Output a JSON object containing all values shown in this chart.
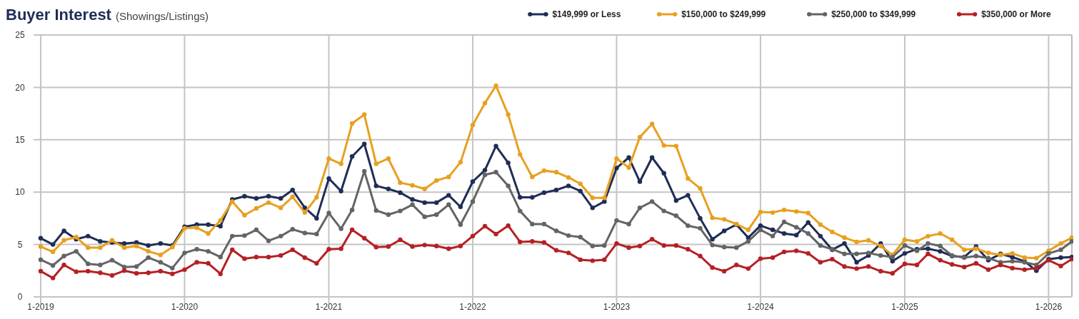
{
  "chart_data": {
    "type": "line",
    "title": "Buyer Interest",
    "subtitle": "(Showings/Listings)",
    "x": [
      "2019-01",
      "2019-02",
      "2019-03",
      "2019-04",
      "2019-05",
      "2019-06",
      "2019-07",
      "2019-08",
      "2019-09",
      "2019-10",
      "2019-11",
      "2019-12",
      "2020-01",
      "2020-02",
      "2020-03",
      "2020-04",
      "2020-05",
      "2020-06",
      "2020-07",
      "2020-08",
      "2020-09",
      "2020-10",
      "2020-11",
      "2020-12",
      "2021-01",
      "2021-02",
      "2021-03",
      "2021-04",
      "2021-05",
      "2021-06",
      "2021-07",
      "2021-08",
      "2021-09",
      "2021-10",
      "2021-11",
      "2021-12",
      "2022-01",
      "2022-02",
      "2022-03",
      "2022-04",
      "2022-05",
      "2022-06",
      "2022-07",
      "2022-08",
      "2022-09",
      "2022-10",
      "2022-11",
      "2022-12",
      "2023-01",
      "2023-02",
      "2023-03",
      "2023-04",
      "2023-05",
      "2023-06",
      "2023-07",
      "2023-08",
      "2023-09",
      "2023-10",
      "2023-11",
      "2023-12",
      "2024-01",
      "2024-02",
      "2024-03",
      "2024-04",
      "2024-05",
      "2024-06",
      "2024-07",
      "2024-08",
      "2024-09",
      "2024-10",
      "2024-11",
      "2024-12",
      "2025-01",
      "2025-02",
      "2025-03",
      "2025-04",
      "2025-05",
      "2025-06",
      "2025-07",
      "2025-08",
      "2025-09",
      "2025-10",
      "2025-11",
      "2025-12",
      "2026-01",
      "2026-02",
      "2026-03"
    ],
    "series": [
      {
        "name": "$149,999 or Less",
        "color": "#1f2d56",
        "values": [
          5.6,
          5.0,
          6.3,
          5.5,
          5.8,
          5.3,
          5.2,
          5.1,
          5.2,
          4.9,
          5.1,
          4.9,
          6.7,
          6.9,
          6.9,
          6.75,
          9.3,
          9.6,
          9.4,
          9.6,
          9.4,
          10.2,
          8.5,
          7.5,
          11.3,
          10.1,
          13.4,
          14.6,
          10.6,
          10.3,
          9.95,
          9.3,
          9.0,
          9.0,
          9.7,
          8.6,
          11.0,
          12.1,
          14.4,
          12.8,
          9.5,
          9.5,
          9.95,
          10.2,
          10.6,
          10.1,
          8.5,
          9.1,
          12.3,
          13.3,
          11.0,
          13.3,
          11.8,
          9.2,
          9.7,
          7.5,
          5.5,
          6.3,
          6.9,
          5.65,
          6.8,
          6.4,
          6.05,
          5.9,
          7.1,
          5.8,
          4.5,
          5.1,
          3.3,
          3.95,
          5.1,
          3.4,
          4.15,
          4.55,
          4.6,
          4.35,
          3.9,
          3.8,
          4.8,
          3.5,
          4.1,
          3.8,
          3.4,
          2.5,
          3.6,
          3.75,
          3.8
        ]
      },
      {
        "name": "$150,000 to $249,999",
        "color": "#e8a020",
        "values": [
          4.8,
          4.3,
          5.4,
          5.7,
          4.7,
          4.7,
          5.4,
          4.7,
          4.85,
          4.35,
          4.0,
          4.75,
          6.55,
          6.6,
          6.05,
          7.3,
          9.1,
          7.8,
          8.45,
          9.0,
          8.5,
          9.55,
          8.05,
          9.5,
          13.2,
          12.7,
          16.55,
          17.4,
          12.7,
          13.2,
          10.9,
          10.65,
          10.3,
          11.1,
          11.45,
          12.85,
          16.4,
          18.5,
          20.15,
          17.4,
          13.6,
          11.45,
          12.05,
          11.9,
          11.4,
          10.8,
          9.45,
          9.45,
          13.2,
          12.35,
          15.25,
          16.5,
          14.45,
          14.4,
          11.3,
          10.35,
          7.55,
          7.4,
          6.95,
          6.4,
          8.1,
          8.05,
          8.3,
          8.15,
          8.0,
          6.9,
          6.2,
          5.65,
          5.25,
          5.4,
          4.85,
          4.0,
          5.45,
          5.3,
          5.8,
          6.05,
          5.45,
          4.5,
          4.6,
          4.2,
          4.0,
          4.15,
          3.75,
          3.7,
          4.4,
          5.1,
          5.65
        ]
      },
      {
        "name": "$250,000 to $349,999",
        "color": "#636466",
        "values": [
          3.55,
          3.0,
          3.9,
          4.35,
          3.15,
          3.05,
          3.5,
          2.85,
          2.9,
          3.75,
          3.3,
          2.75,
          4.2,
          4.55,
          4.35,
          3.8,
          5.8,
          5.85,
          6.4,
          5.35,
          5.8,
          6.45,
          6.1,
          6.0,
          8.0,
          6.5,
          8.3,
          12.0,
          8.25,
          7.85,
          8.2,
          8.8,
          7.65,
          7.85,
          8.8,
          6.9,
          9.1,
          11.65,
          11.9,
          10.6,
          8.2,
          6.95,
          6.95,
          6.3,
          5.85,
          5.7,
          4.85,
          4.9,
          7.3,
          6.95,
          8.5,
          9.1,
          8.2,
          7.75,
          6.8,
          6.55,
          4.95,
          4.75,
          4.7,
          5.3,
          6.4,
          5.8,
          7.15,
          6.65,
          6.05,
          4.9,
          4.55,
          4.1,
          4.1,
          4.2,
          3.95,
          3.8,
          4.9,
          4.4,
          5.1,
          4.85,
          3.95,
          3.75,
          3.9,
          3.7,
          3.3,
          3.4,
          3.3,
          3.05,
          4.15,
          4.5,
          5.3
        ]
      },
      {
        "name": "$350,000 or More",
        "color": "#b52025",
        "values": [
          2.45,
          1.8,
          3.05,
          2.4,
          2.45,
          2.3,
          2.05,
          2.5,
          2.25,
          2.3,
          2.45,
          2.2,
          2.6,
          3.3,
          3.2,
          2.2,
          4.5,
          3.65,
          3.8,
          3.8,
          3.95,
          4.5,
          3.75,
          3.2,
          4.55,
          4.6,
          6.4,
          5.6,
          4.75,
          4.8,
          5.45,
          4.8,
          4.95,
          4.85,
          4.6,
          4.85,
          5.8,
          6.75,
          6.0,
          6.8,
          5.25,
          5.3,
          5.2,
          4.45,
          4.2,
          3.55,
          3.45,
          3.55,
          5.1,
          4.7,
          4.85,
          5.5,
          4.9,
          4.9,
          4.55,
          3.9,
          2.8,
          2.45,
          3.05,
          2.7,
          3.65,
          3.75,
          4.3,
          4.4,
          4.15,
          3.3,
          3.6,
          2.9,
          2.7,
          2.9,
          2.45,
          2.25,
          3.15,
          3.05,
          4.1,
          3.5,
          3.1,
          2.85,
          3.2,
          2.6,
          3.05,
          2.75,
          2.6,
          2.75,
          3.5,
          2.95,
          3.6
        ]
      }
    ],
    "xlim": [
      "2019-01",
      "2026-03"
    ],
    "xticks": [
      {
        "value": "2019-01",
        "label": "1-2019"
      },
      {
        "value": "2020-01",
        "label": "1-2020"
      },
      {
        "value": "2021-01",
        "label": "1-2021"
      },
      {
        "value": "2022-01",
        "label": "1-2022"
      },
      {
        "value": "2023-01",
        "label": "1-2023"
      },
      {
        "value": "2024-01",
        "label": "1-2024"
      },
      {
        "value": "2025-01",
        "label": "1-2025"
      },
      {
        "value": "2026-01",
        "label": "1-2026"
      }
    ],
    "ylim": [
      0,
      25
    ],
    "yticks": [
      0,
      5,
      10,
      15,
      20,
      25
    ],
    "grid": true,
    "legend": "top right",
    "marker": "circle",
    "line_style": "solid"
  }
}
